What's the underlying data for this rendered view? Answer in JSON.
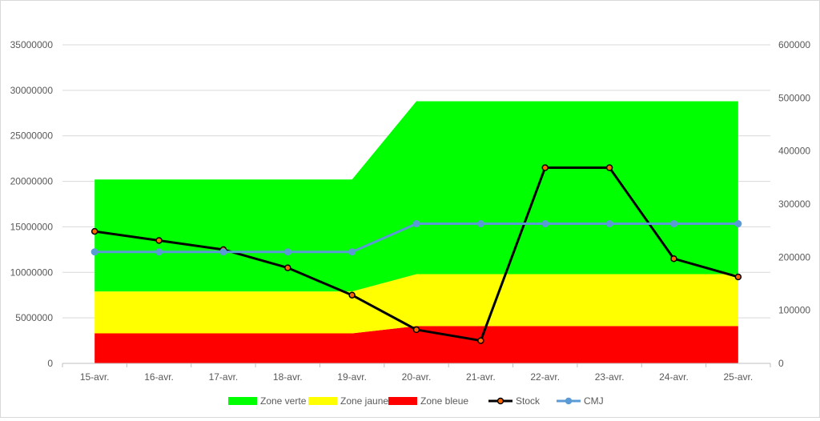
{
  "chart_data": {
    "type": "area",
    "title": "",
    "categories": [
      "15-avr.",
      "16-avr.",
      "17-avr.",
      "18-avr.",
      "19-avr.",
      "20-avr.",
      "21-avr.",
      "22-avr.",
      "23-avr.",
      "24-avr.",
      "25-avr."
    ],
    "y_left": {
      "lim": [
        0,
        35000000
      ],
      "ticks": [
        "0",
        "5000000",
        "10000000",
        "15000000",
        "20000000",
        "25000000",
        "30000000",
        "35000000"
      ]
    },
    "y_right": {
      "lim": [
        0,
        600000
      ],
      "ticks": [
        "0",
        "100000",
        "200000",
        "300000",
        "400000",
        "500000",
        "600000"
      ]
    },
    "grid": true,
    "legend_position": "bottom",
    "stacked_areas": [
      {
        "name": "Zone bleue",
        "color": "#ff0000",
        "values": [
          3300000,
          3300000,
          3300000,
          3300000,
          3300000,
          4100000,
          4100000,
          4100000,
          4100000,
          4100000,
          4100000
        ]
      },
      {
        "name": "Zone jaune",
        "color": "#ffff00",
        "values": [
          4600000,
          4600000,
          4600000,
          4600000,
          4600000,
          5700000,
          5700000,
          5700000,
          5700000,
          5700000,
          5700000
        ]
      },
      {
        "name": "Zone verte",
        "color": "#00ff00",
        "values": [
          12300000,
          12300000,
          12300000,
          12300000,
          12300000,
          19000000,
          19000000,
          19000000,
          19000000,
          19000000,
          19000000
        ]
      }
    ],
    "lines": [
      {
        "name": "Stock",
        "axis": "left",
        "color": "#000000",
        "marker": "#ff6600",
        "values": [
          14500000,
          13500000,
          12500000,
          10500000,
          7500000,
          3700000,
          2500000,
          21500000,
          21500000,
          11500000,
          9500000
        ]
      },
      {
        "name": "CMJ",
        "axis": "right",
        "color": "#5b9bd5",
        "marker": "#5b9bd5",
        "values": [
          210000,
          210000,
          210000,
          210000,
          210000,
          263000,
          263000,
          263000,
          263000,
          263000,
          263000
        ]
      }
    ],
    "legend": [
      {
        "name": "Zone verte",
        "color": "#00ff00",
        "kind": "area"
      },
      {
        "name": "Zone jaune",
        "color": "#ffff00",
        "kind": "area"
      },
      {
        "name": "Zone bleue",
        "color": "#ff0000",
        "kind": "area"
      },
      {
        "name": "Stock",
        "color": "#000000",
        "kind": "line",
        "marker": "#ff6600"
      },
      {
        "name": "CMJ",
        "color": "#5b9bd5",
        "kind": "line",
        "marker": "#5b9bd5"
      }
    ]
  }
}
